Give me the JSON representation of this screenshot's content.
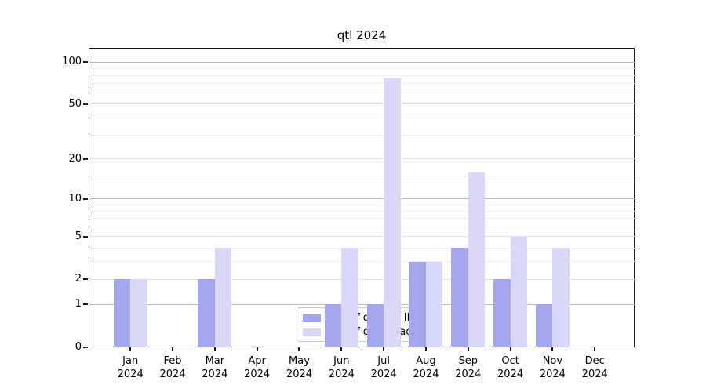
{
  "title": "qtl 2024",
  "chart_data": {
    "type": "bar",
    "title": "qtl 2024",
    "categories": [
      "Jan\n2024",
      "Feb\n2024",
      "Mar\n2024",
      "Apr\n2024",
      "May\n2024",
      "Jun\n2024",
      "Jul\n2024",
      "Aug\n2024",
      "Sep\n2024",
      "Oct\n2024",
      "Nov\n2024",
      "Dec\n2024"
    ],
    "series": [
      {
        "name": "Nb of distinct IPs",
        "color": "#a6a6ee",
        "values": [
          2,
          0,
          2,
          0,
          0,
          1,
          1,
          3,
          4,
          2,
          1,
          0
        ]
      },
      {
        "name": "Nb of downloads",
        "color": "#d9d9f7",
        "values": [
          2,
          0,
          4,
          0,
          0,
          4,
          76,
          3,
          16,
          5,
          4,
          0
        ]
      }
    ],
    "xlabel": "",
    "ylabel": "",
    "yscale": "log1p",
    "ylim": [
      0,
      128
    ],
    "ytick_values": [
      0,
      1,
      2,
      5,
      10,
      20,
      50,
      100
    ],
    "ytick_labels": [
      "0",
      "1",
      "2",
      "5",
      "10",
      "20",
      "50",
      "100"
    ],
    "grid": "on",
    "decade_gridlines": [
      1,
      10,
      100
    ],
    "labeled_gridlines": [
      2,
      5,
      20,
      50
    ],
    "minor_gridlines": [
      3,
      4,
      6,
      7,
      8,
      9,
      15,
      30,
      40,
      60,
      70,
      80,
      90
    ],
    "legend_position": "bottom-center-inside"
  },
  "colors": {
    "bar_dark": "#a6a6ee",
    "bar_light": "#d9d9f7",
    "grid_decade": "#bbbbbb",
    "grid_labeled": "#e3e3e3",
    "grid_minor": "#f0f0f0",
    "spine": "#1a1a1a",
    "legend_border": "#cccccc"
  }
}
